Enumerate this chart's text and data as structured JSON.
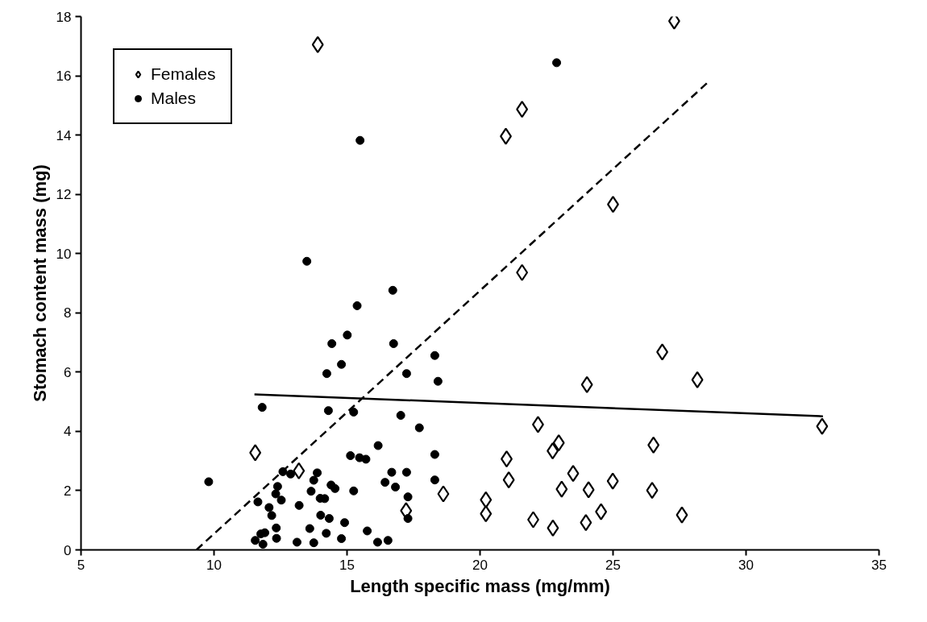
{
  "chart_data": {
    "type": "scatter",
    "xlabel": "Length specific mass (mg/mm)",
    "ylabel": "Stomach content mass (mg)",
    "xlim": [
      5,
      35
    ],
    "xticks": [
      5,
      10,
      15,
      20,
      25,
      30,
      35
    ],
    "ylim": [
      0,
      18
    ],
    "yticks": [
      0,
      2,
      4,
      6,
      8,
      10,
      12,
      14,
      16,
      18
    ],
    "grid": false,
    "legend": "top left",
    "series": [
      {
        "name": "Females",
        "marker": "diamond",
        "color": "#000000",
        "x": [
          13.9,
          27.3,
          21.58,
          20.97,
          25.0,
          21.58,
          26.85,
          28.17,
          24.02,
          22.18,
          22.96,
          22.73,
          21.0,
          26.52,
          21.08,
          23.5,
          23.07,
          24.08,
          24.99,
          26.47,
          20.22,
          20.22,
          22.0,
          22.74,
          23.98,
          24.55,
          27.59,
          32.86,
          11.55,
          13.19,
          18.62,
          17.22
        ],
        "values": [
          17.05,
          17.85,
          14.87,
          13.96,
          11.66,
          9.36,
          6.68,
          5.74,
          5.58,
          4.23,
          3.61,
          3.34,
          3.07,
          3.54,
          2.36,
          2.58,
          2.05,
          2.03,
          2.32,
          2.01,
          1.69,
          1.22,
          1.02,
          0.74,
          0.92,
          1.29,
          1.18,
          4.17,
          3.28,
          2.67,
          1.89,
          1.32
        ]
      },
      {
        "name": "Males",
        "marker": "circle",
        "color": "#000000",
        "x": [
          22.88,
          15.49,
          13.49,
          16.72,
          15.38,
          9.8,
          15.01,
          14.43,
          16.75,
          18.3,
          14.79,
          14.24,
          17.24,
          18.42,
          11.81,
          14.3,
          15.25,
          17.02,
          17.72,
          16.17,
          18.3,
          15.13,
          15.47,
          15.71,
          12.59,
          12.88,
          13.88,
          13.75,
          16.68,
          17.24,
          16.43,
          16.82,
          18.3,
          12.39,
          12.32,
          12.53,
          11.65,
          13.65,
          14.4,
          14.55,
          13.99,
          14.16,
          15.25,
          17.29,
          12.07,
          12.17,
          13.2,
          14.01,
          14.33,
          14.91,
          17.29,
          15.76,
          13.6,
          14.22,
          12.34,
          11.91,
          11.76,
          12.35,
          11.55,
          11.84,
          13.12,
          13.75,
          14.79,
          16.15,
          16.54
        ],
        "values": [
          16.44,
          13.82,
          9.74,
          8.76,
          8.24,
          2.3,
          7.25,
          6.96,
          6.96,
          6.56,
          6.26,
          5.95,
          5.95,
          5.69,
          4.81,
          4.7,
          4.65,
          4.54,
          4.12,
          3.52,
          3.22,
          3.18,
          3.11,
          3.06,
          2.64,
          2.56,
          2.6,
          2.35,
          2.62,
          2.62,
          2.28,
          2.12,
          2.36,
          2.14,
          1.89,
          1.68,
          1.62,
          1.98,
          2.19,
          2.07,
          1.74,
          1.73,
          1.99,
          1.79,
          1.43,
          1.16,
          1.5,
          1.17,
          1.06,
          0.92,
          1.06,
          0.64,
          0.72,
          0.56,
          0.74,
          0.58,
          0.54,
          0.39,
          0.32,
          0.19,
          0.26,
          0.24,
          0.38,
          0.26,
          0.32
        ]
      },
      {
        "type": "line",
        "line_style": "solid",
        "color": "#000000",
        "x": [
          11.52,
          32.89
        ],
        "values": [
          5.25,
          4.51
        ]
      },
      {
        "type": "line",
        "line_style": "dashed",
        "color": "#000000",
        "x": [
          9.34,
          28.53
        ],
        "values": [
          0,
          15.75
        ]
      }
    ]
  }
}
